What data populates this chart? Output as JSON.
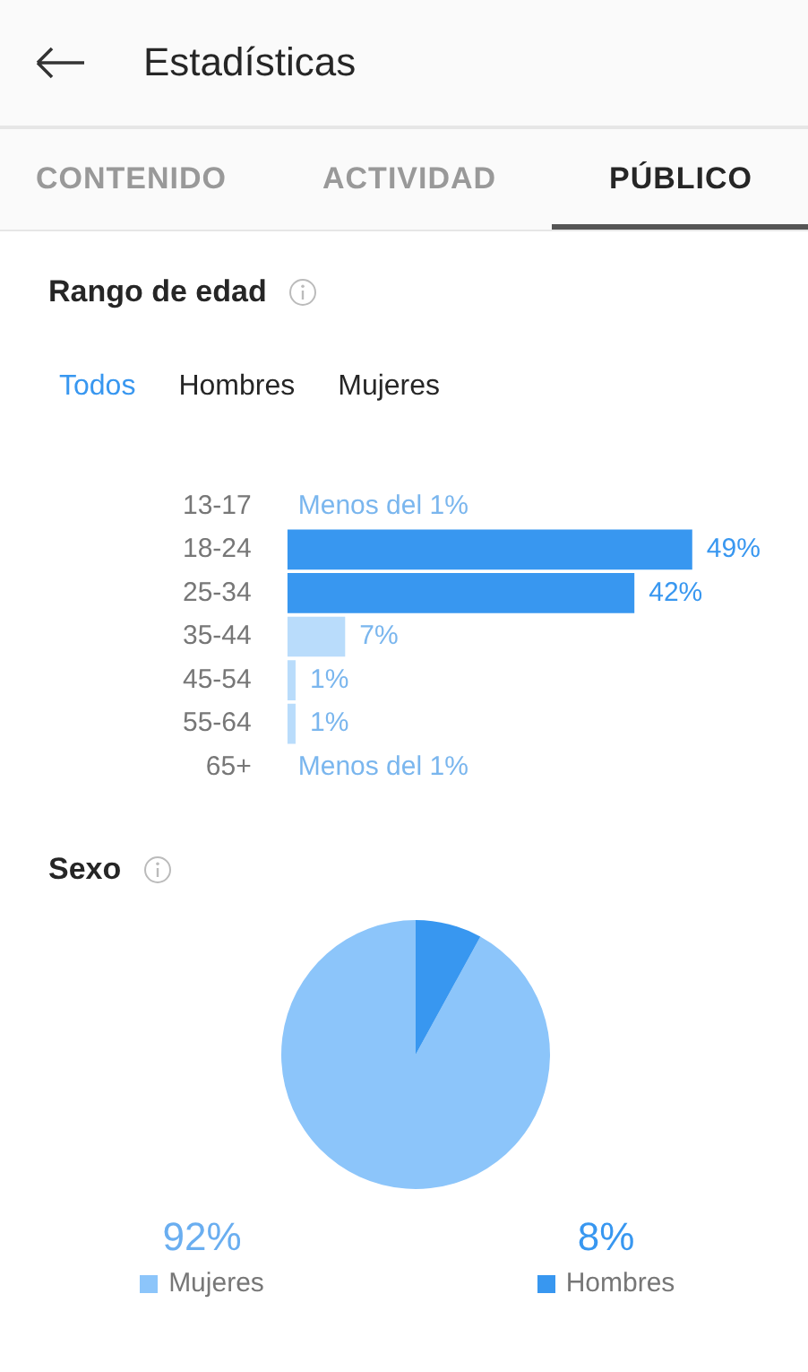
{
  "chart_data": [
    {
      "type": "other",
      "title": "Estadísticas",
      "annotations": [
        "CONTENIDO",
        "ACTIVIDAD",
        "PÚBLICO"
      ]
    },
    {
      "type": "bar",
      "orientation": "horizontal",
      "title": "Rango de edad",
      "annotations": [
        "Todos",
        "Hombres",
        "Mujeres"
      ],
      "categories": [
        "13-17",
        "18-24",
        "25-34",
        "35-44",
        "45-54",
        "55-64",
        "65+"
      ],
      "values": [
        null,
        49,
        42,
        7,
        1,
        1,
        null
      ],
      "value_labels": [
        "Menos del 1%",
        "49%",
        "42%",
        "7%",
        "1%",
        "1%",
        "Menos del 1%"
      ],
      "colors": [
        "#c5e0fa",
        "#3897f0",
        "#3897f0",
        "#b9dcfb",
        "#b9dcfb",
        "#b9dcfb",
        "#c5e0fa"
      ],
      "tick_labels": "y",
      "grid": false,
      "legend": false
    },
    {
      "type": "pie",
      "title": "Sexo",
      "categories": [
        "Mujeres",
        "Hombres"
      ],
      "values": [
        92,
        8
      ],
      "value_labels": [
        "92%",
        "8%"
      ],
      "colors": [
        "#8cc5fa",
        "#3897f0"
      ],
      "legend": "bottom"
    }
  ]
}
